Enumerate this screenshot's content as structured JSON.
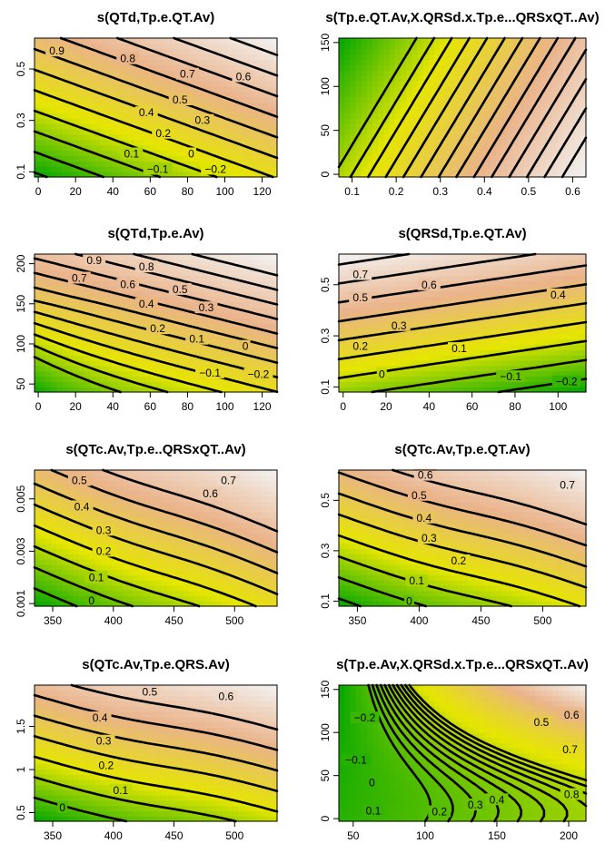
{
  "colors": {
    "ramp": [
      "#00a600",
      "#e6e600",
      "#eab38a",
      "#f2f2f2"
    ],
    "contour": "#000000",
    "axis": "#000000"
  },
  "chart_data": [
    {
      "type": "heatmap",
      "kind": "contour",
      "title": "s(QTd,Tp.e.QT.Av)",
      "xlim": [
        -2,
        128
      ],
      "ylim": [
        0.08,
        0.62
      ],
      "xticks": [
        0,
        20,
        40,
        60,
        80,
        100,
        120
      ],
      "yticks": [
        0.1,
        0.3,
        0.5
      ],
      "field": {
        "form": "linear",
        "a": -0.09,
        "bx": 0.0033,
        "by": 1.25,
        "y0": 0.1,
        "x0": 0
      },
      "levels": [
        -0.2,
        -0.1,
        0,
        0.1,
        0.2,
        0.3,
        0.4,
        0.5,
        0.6,
        0.7,
        0.8,
        0.9
      ],
      "labels": [
        {
          "text": "0.9",
          "x": 10,
          "y": 0.57
        },
        {
          "text": "0.8",
          "x": 48,
          "y": 0.54
        },
        {
          "text": "0.7",
          "x": 80,
          "y": 0.48
        },
        {
          "text": "0.6",
          "x": 110,
          "y": 0.47
        },
        {
          "text": "0.5",
          "x": 76,
          "y": 0.38
        },
        {
          "text": "0.4",
          "x": 58,
          "y": 0.33
        },
        {
          "text": "0.3",
          "x": 88,
          "y": 0.3
        },
        {
          "text": "0.2",
          "x": 67,
          "y": 0.25
        },
        {
          "text": "0.1",
          "x": 50,
          "y": 0.17
        },
        {
          "text": "0",
          "x": 82,
          "y": 0.17
        },
        {
          "text": "−0.1",
          "x": 64,
          "y": 0.11
        },
        {
          "text": "−0.2",
          "x": 95,
          "y": 0.11
        }
      ]
    },
    {
      "type": "heatmap",
      "kind": "contour",
      "title": "s(Tp.e.QT.Av,X.QRSd.x.Tp.e...QRSxQT..Av)",
      "xlim": [
        0.07,
        0.63
      ],
      "ylim": [
        -3,
        155
      ],
      "xticks": [
        0.1,
        0.2,
        0.3,
        0.4,
        0.5,
        0.6
      ],
      "yticks": [
        0,
        50,
        100,
        150
      ],
      "field": {
        "form": "linear",
        "a": 0.0,
        "bx": 1.0,
        "by": -0.0012,
        "y0": 0,
        "x0": 0
      },
      "levels": [
        0.06,
        0.1,
        0.14,
        0.18,
        0.22,
        0.26,
        0.3,
        0.34,
        0.38,
        0.42,
        0.46,
        0.5,
        0.54,
        0.58
      ],
      "labels": []
    },
    {
      "type": "heatmap",
      "kind": "contour",
      "title": "s(QTd,Tp.e.Av)",
      "xlim": [
        -2,
        128
      ],
      "ylim": [
        40,
        212
      ],
      "xticks": [
        0,
        20,
        40,
        60,
        80,
        100,
        120
      ],
      "yticks": [
        50,
        100,
        150,
        200
      ],
      "field": {
        "form": "bend",
        "a": -0.31,
        "bx": 0.0032,
        "by": 0.0055,
        "y0": 40,
        "x0": 0
      },
      "levels": [
        -0.2,
        -0.1,
        0,
        0.1,
        0.2,
        0.3,
        0.4,
        0.5,
        0.6,
        0.7,
        0.8,
        0.9
      ],
      "labels": [
        {
          "text": "0.9",
          "x": 30,
          "y": 204
        },
        {
          "text": "0.8",
          "x": 58,
          "y": 196
        },
        {
          "text": "0.7",
          "x": 22,
          "y": 182
        },
        {
          "text": "0.6",
          "x": 48,
          "y": 174
        },
        {
          "text": "0.5",
          "x": 76,
          "y": 168
        },
        {
          "text": "0.4",
          "x": 58,
          "y": 150
        },
        {
          "text": "0.3",
          "x": 90,
          "y": 145
        },
        {
          "text": "0.2",
          "x": 64,
          "y": 119
        },
        {
          "text": "0.1",
          "x": 85,
          "y": 106
        },
        {
          "text": "0",
          "x": 111,
          "y": 97
        },
        {
          "text": "−0.1",
          "x": 92,
          "y": 64
        },
        {
          "text": "−0.2",
          "x": 118,
          "y": 62
        }
      ]
    },
    {
      "type": "heatmap",
      "kind": "contour",
      "title": "s(QRSd,Tp.e.QT.Av)",
      "xlim": [
        -2,
        113
      ],
      "ylim": [
        0.08,
        0.62
      ],
      "xticks": [
        0,
        20,
        40,
        60,
        80,
        100
      ],
      "yticks": [
        0.1,
        0.3,
        0.5
      ],
      "field": {
        "form": "linear",
        "a": -0.05,
        "bx": -0.0017,
        "by": 1.35,
        "y0": 0.1,
        "x0": 0
      },
      "levels": [
        -0.2,
        -0.1,
        0,
        0.1,
        0.2,
        0.3,
        0.4,
        0.5,
        0.6,
        0.7
      ],
      "labels": [
        {
          "text": "0.7",
          "x": 8,
          "y": 0.54
        },
        {
          "text": "0.6",
          "x": 40,
          "y": 0.5
        },
        {
          "text": "0.5",
          "x": 8,
          "y": 0.45
        },
        {
          "text": "0.4",
          "x": 100,
          "y": 0.46
        },
        {
          "text": "0.3",
          "x": 26,
          "y": 0.34
        },
        {
          "text": "0.2",
          "x": 8,
          "y": 0.26
        },
        {
          "text": "0.1",
          "x": 54,
          "y": 0.25
        },
        {
          "text": "0",
          "x": 18,
          "y": 0.15
        },
        {
          "text": "−0.1",
          "x": 78,
          "y": 0.14
        },
        {
          "text": "−0.2",
          "x": 104,
          "y": 0.12
        }
      ]
    },
    {
      "type": "heatmap",
      "kind": "contour",
      "title": "s(QTc.Av,Tp.e..QRSxQT..Av)",
      "xlim": [
        335,
        535
      ],
      "ylim": [
        0.0009,
        0.0061
      ],
      "xticks": [
        350,
        400,
        450,
        500
      ],
      "yticks": [
        0.001,
        0.003,
        0.005
      ],
      "field": {
        "form": "sigmoid",
        "a": -0.12,
        "bx": 0.0026,
        "by": 125,
        "y0": 0.001,
        "x0": 335
      },
      "levels": [
        0,
        0.1,
        0.2,
        0.3,
        0.4,
        0.5,
        0.6,
        0.7
      ],
      "labels": [
        {
          "text": "0.5",
          "x": 372,
          "y": 0.0057
        },
        {
          "text": "0.7",
          "x": 495,
          "y": 0.0057
        },
        {
          "text": "0.4",
          "x": 374,
          "y": 0.0047
        },
        {
          "text": "0.6",
          "x": 480,
          "y": 0.0052
        },
        {
          "text": "0.3",
          "x": 392,
          "y": 0.0038
        },
        {
          "text": "0.2",
          "x": 392,
          "y": 0.003
        },
        {
          "text": "0.1",
          "x": 386,
          "y": 0.002
        },
        {
          "text": "0",
          "x": 382,
          "y": 0.0011
        }
      ]
    },
    {
      "type": "heatmap",
      "kind": "contour",
      "title": "s(QTc.Av,Tp.e.QT.Av)",
      "xlim": [
        335,
        535
      ],
      "ylim": [
        0.08,
        0.62
      ],
      "xticks": [
        350,
        400,
        450,
        500
      ],
      "yticks": [
        0.1,
        0.3,
        0.5
      ],
      "field": {
        "form": "sigmoid",
        "a": -0.06,
        "bx": 0.0022,
        "by": 1.2,
        "y0": 0.1,
        "x0": 335
      },
      "levels": [
        0,
        0.1,
        0.2,
        0.3,
        0.4,
        0.5,
        0.6,
        0.7
      ],
      "labels": [
        {
          "text": "0.6",
          "x": 405,
          "y": 0.6
        },
        {
          "text": "0.7",
          "x": 520,
          "y": 0.56
        },
        {
          "text": "0.5",
          "x": 400,
          "y": 0.52
        },
        {
          "text": "0.4",
          "x": 404,
          "y": 0.43
        },
        {
          "text": "0.3",
          "x": 408,
          "y": 0.35
        },
        {
          "text": "0.2",
          "x": 432,
          "y": 0.26
        },
        {
          "text": "0.1",
          "x": 398,
          "y": 0.18
        },
        {
          "text": "0",
          "x": 392,
          "y": 0.1
        }
      ]
    },
    {
      "type": "heatmap",
      "kind": "contour",
      "title": "s(QTc.Av,Tp.e.QRS.Av)",
      "xlim": [
        335,
        535
      ],
      "ylim": [
        0.4,
        1.98
      ],
      "xticks": [
        350,
        400,
        450,
        500
      ],
      "yticks": [
        0.5,
        1.0,
        1.5
      ],
      "field": {
        "form": "sigmoid",
        "a": -0.12,
        "bx": 0.0018,
        "by": 0.42,
        "y0": 0.5,
        "x0": 335
      },
      "levels": [
        0,
        0.1,
        0.2,
        0.3,
        0.4,
        0.5,
        0.6
      ],
      "labels": [
        {
          "text": "0.5",
          "x": 430,
          "y": 1.9
        },
        {
          "text": "0.6",
          "x": 493,
          "y": 1.85
        },
        {
          "text": "0.4",
          "x": 389,
          "y": 1.6
        },
        {
          "text": "0.3",
          "x": 392,
          "y": 1.33
        },
        {
          "text": "0.2",
          "x": 394,
          "y": 1.05
        },
        {
          "text": "0.1",
          "x": 406,
          "y": 0.76
        },
        {
          "text": "0",
          "x": 358,
          "y": 0.56
        }
      ]
    },
    {
      "type": "heatmap",
      "kind": "contour",
      "title": "s(Tp.e.Av,X.QRSd.x.Tp.e...QRSxQT..Av)",
      "xlim": [
        40,
        212
      ],
      "ylim": [
        -3,
        155
      ],
      "xticks": [
        50,
        100,
        150,
        200
      ],
      "yticks": [
        0,
        50,
        100,
        150
      ],
      "field": {
        "form": "curve",
        "a": -0.58,
        "bx": 0.0062,
        "by": -0.0022,
        "y0": 0,
        "x0": 40
      },
      "levels": [
        -0.2,
        -0.1,
        0,
        0.1,
        0.2,
        0.3,
        0.4,
        0.5,
        0.6,
        0.7,
        0.8
      ],
      "labels": [
        {
          "text": "−0.2",
          "x": 58,
          "y": 117
        },
        {
          "text": "−0.1",
          "x": 52,
          "y": 68
        },
        {
          "text": "0",
          "x": 63,
          "y": 42
        },
        {
          "text": "0.1",
          "x": 64,
          "y": 9
        },
        {
          "text": "0.2",
          "x": 110,
          "y": 8
        },
        {
          "text": "0.3",
          "x": 135,
          "y": 16
        },
        {
          "text": "0.4",
          "x": 150,
          "y": 22
        },
        {
          "text": "0.5",
          "x": 181,
          "y": 112
        },
        {
          "text": "0.6",
          "x": 202,
          "y": 120
        },
        {
          "text": "0.7",
          "x": 201,
          "y": 80
        },
        {
          "text": "0.8",
          "x": 202,
          "y": 28
        }
      ]
    }
  ]
}
